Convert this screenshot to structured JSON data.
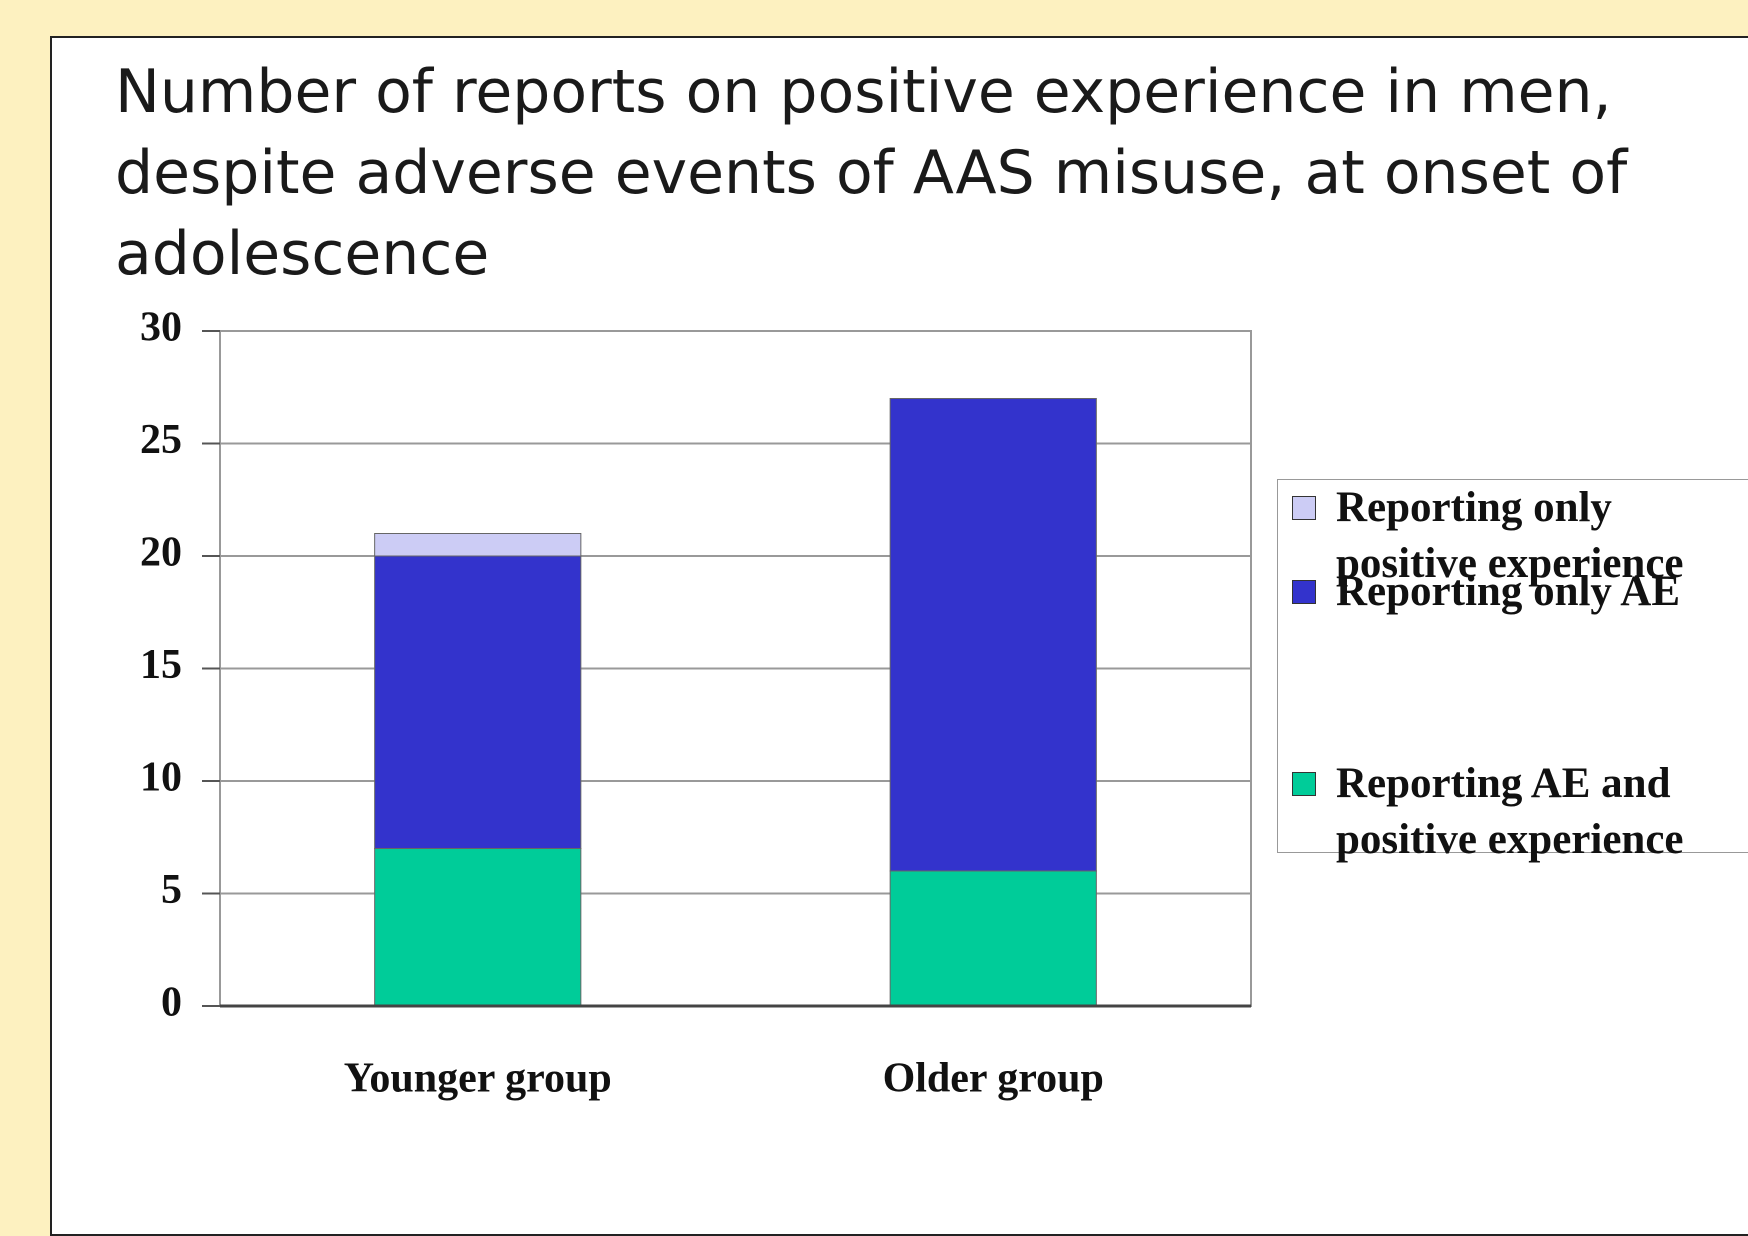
{
  "chart_data": {
    "type": "stacked_bar",
    "title": "Number of reports on positive experience in men, despite adverse events of AAS misuse, at onset of adolescence",
    "categories": [
      "Younger group",
      "Older group"
    ],
    "series": [
      {
        "name": "Reporting AE and positive experience",
        "color": "#00cc99",
        "values": [
          7,
          6
        ]
      },
      {
        "name": "Reporting only AE",
        "color": "#3333cc",
        "values": [
          13,
          21
        ]
      },
      {
        "name": "Reporting only positive experience",
        "color": "#ccccf5",
        "values": [
          1,
          0
        ]
      }
    ],
    "ylim": [
      0,
      30
    ],
    "yticks": [
      0,
      5,
      10,
      15,
      20,
      25,
      30
    ],
    "grid": true,
    "legend": "right"
  }
}
